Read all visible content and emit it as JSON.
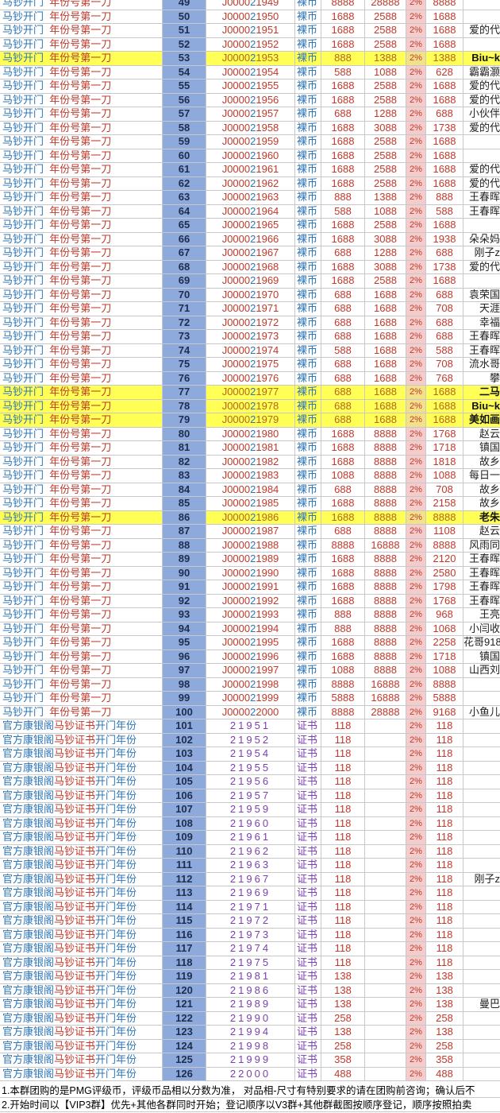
{
  "colors": {
    "blue": "#2e75b6",
    "red": "#c0392b",
    "number_col_bg": "#8ea9db",
    "rate_col_bg": "#f4cccc",
    "highlight": "#ffff55",
    "cert_purple": "#7a3fb0"
  },
  "coin_rows": {
    "name_a": "马钞开门",
    "name_b": "年份号第一刀",
    "type": "裸币",
    "rate": "2%",
    "rows": [
      [
        49,
        "J000021949",
        "8888",
        "28888",
        "8888",
        "",
        false
      ],
      [
        50,
        "J000021950",
        "1688",
        "2588",
        "1688",
        "",
        false
      ],
      [
        51,
        "J000021951",
        "1688",
        "2588",
        "1688",
        "爱的代",
        false
      ],
      [
        52,
        "J000021952",
        "1688",
        "2588",
        "1688",
        "",
        false
      ],
      [
        53,
        "J000021953",
        "888",
        "1388",
        "1388",
        "Biu~k",
        true
      ],
      [
        54,
        "J000021954",
        "588",
        "1088",
        "628",
        "霸霸灏",
        false
      ],
      [
        55,
        "J000021955",
        "1688",
        "2588",
        "1688",
        "爱的代",
        false
      ],
      [
        56,
        "J000021956",
        "1688",
        "2588",
        "1688",
        "爱的代",
        false
      ],
      [
        57,
        "J000021957",
        "688",
        "1288",
        "688",
        "小伙伴",
        false
      ],
      [
        58,
        "J000021958",
        "1688",
        "3088",
        "1738",
        "爱的代",
        false
      ],
      [
        59,
        "J000021959",
        "1688",
        "2588",
        "1688",
        "",
        false
      ],
      [
        60,
        "J000021960",
        "1688",
        "2588",
        "1688",
        "",
        false
      ],
      [
        61,
        "J000021961",
        "1688",
        "2588",
        "1688",
        "爱的代",
        false
      ],
      [
        62,
        "J000021962",
        "1688",
        "2588",
        "1688",
        "爱的代",
        false
      ],
      [
        63,
        "J000021963",
        "888",
        "1388",
        "888",
        "王春晖",
        false
      ],
      [
        64,
        "J000021964",
        "588",
        "1088",
        "588",
        "王春晖",
        false
      ],
      [
        65,
        "J000021965",
        "1688",
        "2588",
        "1688",
        "",
        false
      ],
      [
        66,
        "J000021966",
        "1688",
        "3088",
        "1938",
        "朵朵妈",
        false
      ],
      [
        67,
        "J000021967",
        "688",
        "1288",
        "688",
        "刚子z",
        false
      ],
      [
        68,
        "J000021968",
        "1688",
        "3088",
        "1738",
        "爱的代",
        false
      ],
      [
        69,
        "J000021969",
        "1688",
        "2588",
        "1688",
        "",
        false
      ],
      [
        70,
        "J000021970",
        "688",
        "1688",
        "688",
        "袁荣国",
        false
      ],
      [
        71,
        "J000021971",
        "688",
        "1688",
        "708",
        "天涯",
        false
      ],
      [
        72,
        "J000021972",
        "688",
        "1688",
        "688",
        "幸福",
        false
      ],
      [
        73,
        "J000021973",
        "688",
        "1688",
        "688",
        "王春晖",
        false
      ],
      [
        74,
        "J000021974",
        "588",
        "1688",
        "588",
        "王春晖",
        false
      ],
      [
        75,
        "J000021975",
        "688",
        "1688",
        "708",
        "流水哥",
        false
      ],
      [
        76,
        "J000021976",
        "688",
        "1688",
        "768",
        "攀",
        false
      ],
      [
        77,
        "J000021977",
        "688",
        "1688",
        "1688",
        "二马",
        true
      ],
      [
        78,
        "J000021978",
        "688",
        "1688",
        "1688",
        "Biu~k",
        true
      ],
      [
        79,
        "J000021979",
        "688",
        "1688",
        "1688",
        "美如画",
        true
      ],
      [
        80,
        "J000021980",
        "1688",
        "8888",
        "1768",
        "赵云",
        false
      ],
      [
        81,
        "J000021981",
        "1688",
        "8888",
        "1718",
        "镇国",
        false
      ],
      [
        82,
        "J000021982",
        "1688",
        "8888",
        "1818",
        "故乡",
        false
      ],
      [
        83,
        "J000021983",
        "1088",
        "8888",
        "1088",
        "每日一",
        false
      ],
      [
        84,
        "J000021984",
        "688",
        "8888",
        "708",
        "故乡",
        false
      ],
      [
        85,
        "J000021985",
        "1688",
        "8888",
        "2158",
        "故乡",
        false
      ],
      [
        86,
        "J000021986",
        "1688",
        "8888",
        "8888",
        "老朱",
        true
      ],
      [
        87,
        "J000021987",
        "688",
        "8888",
        "1108",
        "赵云",
        false
      ],
      [
        88,
        "J000021988",
        "8888",
        "16888",
        "8888",
        "风雨同",
        false
      ],
      [
        89,
        "J000021989",
        "1688",
        "8888",
        "2120",
        "王春晖",
        false
      ],
      [
        90,
        "J000021990",
        "1688",
        "8888",
        "2580",
        "王春晖",
        false
      ],
      [
        91,
        "J000021991",
        "1688",
        "8888",
        "1798",
        "王春晖",
        false
      ],
      [
        92,
        "J000021992",
        "1688",
        "8888",
        "1768",
        "王春晖",
        false
      ],
      [
        93,
        "J000021993",
        "888",
        "8888",
        "968",
        "王亮",
        false
      ],
      [
        94,
        "J000021994",
        "888",
        "8888",
        "1068",
        "小闫收",
        false
      ],
      [
        95,
        "J000021995",
        "1688",
        "8888",
        "2258",
        "花哥918",
        false
      ],
      [
        96,
        "J000021996",
        "1688",
        "8888",
        "1718",
        "镇国",
        false
      ],
      [
        97,
        "J000021997",
        "1088",
        "8888",
        "1088",
        "山西刘",
        false
      ],
      [
        98,
        "J000021998",
        "8888",
        "16888",
        "8888",
        "",
        false
      ],
      [
        99,
        "J000021999",
        "5888",
        "16888",
        "5888",
        "",
        false
      ],
      [
        100,
        "J000022000",
        "8888",
        "28888",
        "9168",
        "小鱼儿",
        false
      ]
    ]
  },
  "cert_rows": {
    "name_a": "官方康银阁",
    "name_b": "马钞证书",
    "name_c": "开门年份",
    "type": "证书",
    "rate": "2%",
    "rows": [
      [
        101,
        "21951",
        "118",
        "118",
        ""
      ],
      [
        102,
        "21952",
        "118",
        "118",
        ""
      ],
      [
        103,
        "21954",
        "118",
        "118",
        ""
      ],
      [
        104,
        "21955",
        "118",
        "118",
        ""
      ],
      [
        105,
        "21956",
        "118",
        "118",
        ""
      ],
      [
        106,
        "21957",
        "118",
        "118",
        ""
      ],
      [
        107,
        "21959",
        "118",
        "118",
        ""
      ],
      [
        108,
        "21960",
        "118",
        "118",
        ""
      ],
      [
        109,
        "21961",
        "118",
        "118",
        ""
      ],
      [
        110,
        "21962",
        "118",
        "118",
        ""
      ],
      [
        111,
        "21963",
        "118",
        "118",
        ""
      ],
      [
        112,
        "21967",
        "118",
        "118",
        "刚子z"
      ],
      [
        113,
        "21969",
        "118",
        "118",
        ""
      ],
      [
        114,
        "21971",
        "118",
        "118",
        ""
      ],
      [
        115,
        "21972",
        "118",
        "118",
        ""
      ],
      [
        116,
        "21973",
        "118",
        "118",
        ""
      ],
      [
        117,
        "21974",
        "118",
        "118",
        ""
      ],
      [
        118,
        "21975",
        "118",
        "118",
        ""
      ],
      [
        119,
        "21981",
        "138",
        "138",
        ""
      ],
      [
        120,
        "21986",
        "138",
        "138",
        ""
      ],
      [
        121,
        "21989",
        "138",
        "138",
        "曼巴"
      ],
      [
        122,
        "21990",
        "258",
        "258",
        ""
      ],
      [
        123,
        "21994",
        "138",
        "138",
        ""
      ],
      [
        124,
        "21998",
        "258",
        "258",
        ""
      ],
      [
        125,
        "21999",
        "358",
        "358",
        ""
      ],
      [
        126,
        "22000",
        "488",
        "488",
        ""
      ]
    ]
  },
  "notes": [
    "1.本群团购的是PMG评级币，评级币品相以分数为准， 对品相-尺寸有特别要求的请在团购前咨询；确认后不",
    "2.开始时间以【VIP3群】优先+其他各群同时开始；登记顺序以V3群+其他群截图按顺序登记，顺序按照拍卖"
  ]
}
